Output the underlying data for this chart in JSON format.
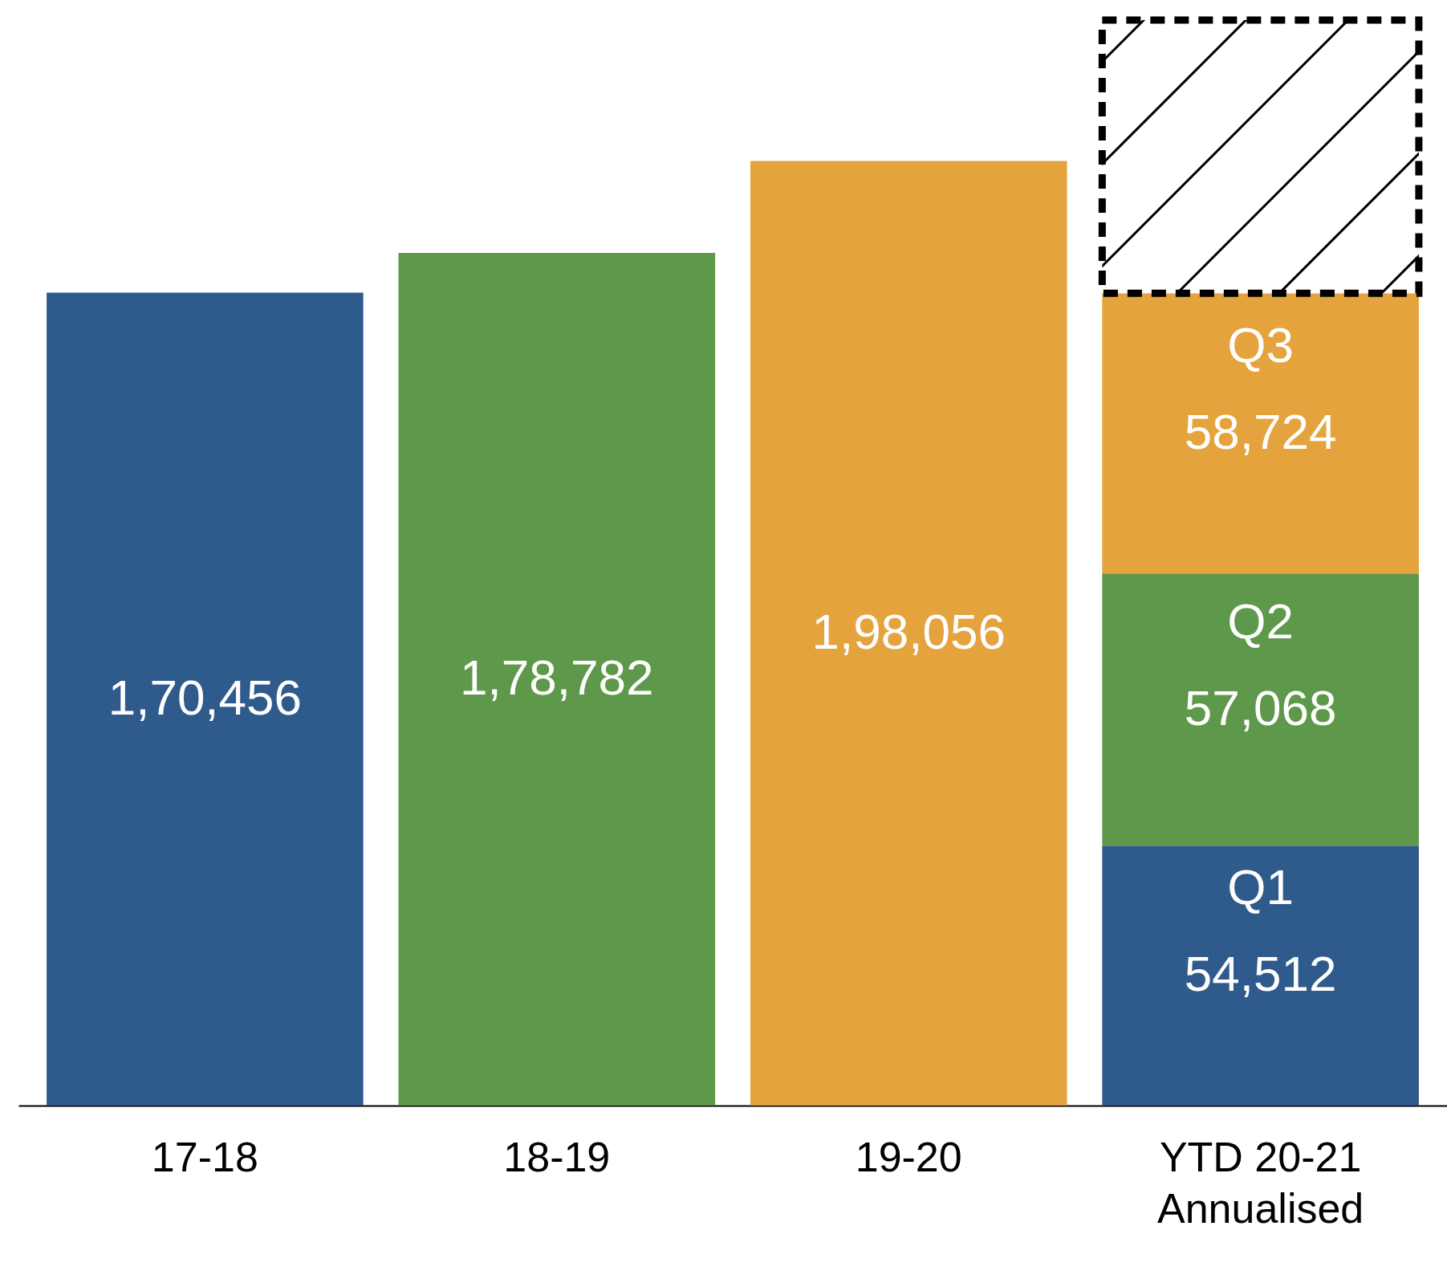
{
  "chart_data": {
    "type": "bar",
    "stacked": true,
    "categories": [
      "17-18",
      "18-19",
      "19-20",
      "YTD 20-21\nAnnualised"
    ],
    "tick_labels": "x",
    "series": [
      {
        "colors": [
          "#2f5a8c",
          "#5e984a",
          "#e5a33d",
          null
        ],
        "values": [
          170456,
          178782,
          198056,
          null
        ],
        "value_labels": [
          "1,70,456",
          "1,78,782",
          "1,98,056",
          null
        ]
      },
      {
        "name": "Q1",
        "color": "#2f5a8c",
        "values": [
          null,
          null,
          null,
          54512
        ],
        "value_labels": [
          null,
          null,
          null,
          "54,512"
        ]
      },
      {
        "name": "Q2",
        "color": "#5e984a",
        "values": [
          null,
          null,
          null,
          57068
        ],
        "value_labels": [
          null,
          null,
          null,
          "57,068"
        ]
      },
      {
        "name": "Q3",
        "color": "#e5a33d",
        "values": [
          null,
          null,
          null,
          58724
        ],
        "value_labels": [
          null,
          null,
          null,
          "58,724"
        ]
      },
      {
        "color": "#000000",
        "line_style": "dashed",
        "values": [
          null,
          null,
          null,
          57300
        ]
      }
    ]
  }
}
